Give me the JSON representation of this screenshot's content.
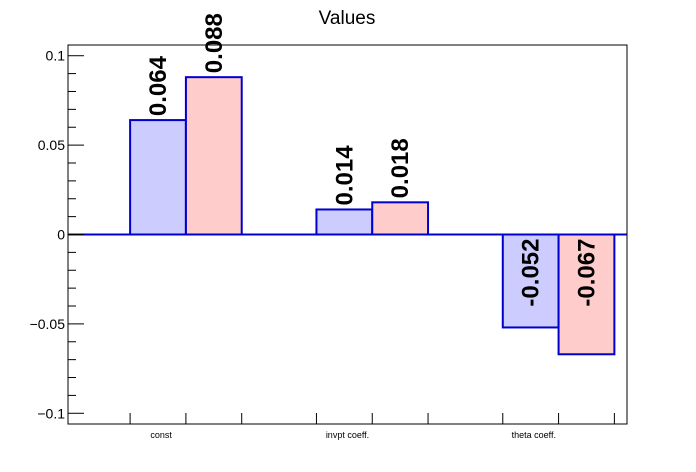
{
  "chart_data": {
    "type": "bar",
    "title": "Values",
    "xlabel": "",
    "ylabel": "",
    "categories": [
      "const",
      "invpt coeff.",
      "theta coeff."
    ],
    "series": [
      {
        "values": [
          0.064,
          0.014,
          -0.052
        ],
        "labels": [
          "0.064",
          "0.014",
          "-0.052"
        ]
      },
      {
        "values": [
          0.088,
          0.018,
          -0.067
        ],
        "labels": [
          "0.088",
          "0.018",
          "-0.067"
        ]
      }
    ],
    "ylim": [
      -0.106,
      0.106
    ],
    "yticks": [
      {
        "value": -0.1,
        "label": "−0.1"
      },
      {
        "value": -0.05,
        "label": "−0.05"
      },
      {
        "value": 0,
        "label": "0"
      },
      {
        "value": 0.05,
        "label": "0.05"
      },
      {
        "value": 0.1,
        "label": "0.1"
      }
    ],
    "grid": false,
    "legend": "none",
    "colors": {
      "series_fill": [
        "#ccccff",
        "#ffcccc"
      ],
      "bar_stroke": "#0000cc",
      "zero_line": "#0000cc",
      "axis": "#000000"
    }
  }
}
